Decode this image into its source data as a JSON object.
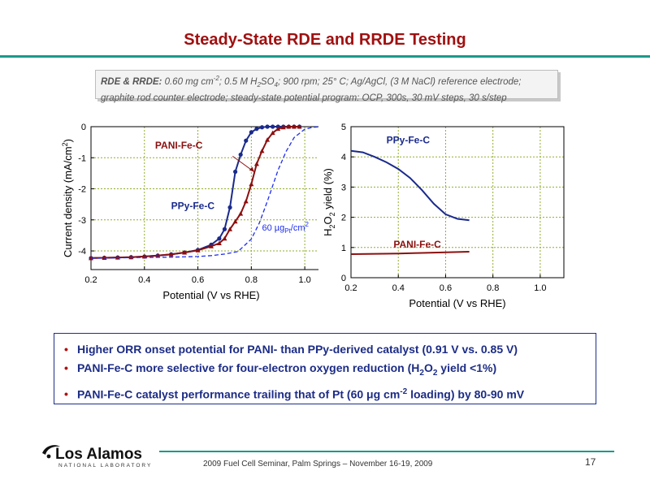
{
  "title": "Steady-State RDE and RRDE Testing",
  "info": {
    "label": "RDE & RRDE:",
    "line1_a": " 0.60 mg cm",
    "line1_b": "; 0.5 M H",
    "line1_c": "SO",
    "line1_d": "; 900 rpm; 25° C; Ag/AgCl, (3 M NaCl) reference electrode;",
    "sup_neg2": "-2",
    "sub_2": "2",
    "sub_4": "4",
    "line2": "graphite rod counter electrode; steady-state potential program: OCP, 300s, 30 mV steps, 30 s/step"
  },
  "chart_data": [
    {
      "type": "line",
      "xlabel": "Potential (V vs RHE)",
      "ylabel": "Current density (mA/cm²)",
      "xlim": [
        0.2,
        1.1
      ],
      "ylim": [
        -4.6,
        0
      ],
      "xticks": [
        "0.2",
        "0.4",
        "0.6",
        "0.8",
        "1.0"
      ],
      "yticks": [
        "0",
        "-1",
        "-2",
        "-3",
        "-4"
      ],
      "grid": true,
      "series": [
        {
          "name": "PPy-Fe-C",
          "color": "#1a2a8c",
          "marker": "circle",
          "x": [
            0.2,
            0.25,
            0.3,
            0.35,
            0.4,
            0.45,
            0.5,
            0.55,
            0.6,
            0.65,
            0.68,
            0.7,
            0.72,
            0.74,
            0.76,
            0.78,
            0.8,
            0.82,
            0.84,
            0.86,
            0.88,
            0.9,
            0.92,
            0.94,
            0.96,
            0.98
          ],
          "y": [
            -4.23,
            -4.22,
            -4.21,
            -4.2,
            -4.18,
            -4.15,
            -4.11,
            -4.05,
            -3.97,
            -3.8,
            -3.6,
            -3.3,
            -2.6,
            -1.45,
            -0.9,
            -0.45,
            -0.18,
            -0.07,
            -0.02,
            0,
            0,
            0,
            0,
            0,
            0,
            0
          ]
        },
        {
          "name": "PANI-Fe-C",
          "color": "#8c0f0f",
          "marker": "triangle",
          "x": [
            0.2,
            0.25,
            0.3,
            0.35,
            0.4,
            0.45,
            0.5,
            0.55,
            0.6,
            0.65,
            0.68,
            0.7,
            0.72,
            0.74,
            0.76,
            0.78,
            0.8,
            0.82,
            0.84,
            0.86,
            0.88,
            0.9,
            0.92,
            0.94,
            0.96,
            0.98
          ],
          "y": [
            -4.23,
            -4.22,
            -4.21,
            -4.2,
            -4.18,
            -4.15,
            -4.11,
            -4.05,
            -3.98,
            -3.85,
            -3.75,
            -3.6,
            -3.3,
            -3.05,
            -2.8,
            -2.4,
            -1.85,
            -1.2,
            -0.78,
            -0.42,
            -0.2,
            -0.07,
            -0.02,
            0,
            0,
            0
          ]
        },
        {
          "name": "60 µg_Pt/cm²",
          "color": "#1e2cf0",
          "dashed": true,
          "x": [
            0.2,
            0.3,
            0.4,
            0.5,
            0.6,
            0.65,
            0.7,
            0.75,
            0.8,
            0.83,
            0.86,
            0.9,
            0.93,
            0.96,
            1.0,
            1.03,
            1.06
          ],
          "y": [
            -4.23,
            -4.22,
            -4.21,
            -4.2,
            -4.18,
            -4.15,
            -4.1,
            -4.02,
            -3.62,
            -3.1,
            -2.4,
            -1.4,
            -0.8,
            -0.35,
            -0.08,
            -0.02,
            0
          ]
        }
      ],
      "annotations": [
        "PANI-Fe-C",
        "PPy-Fe-C",
        "60 µg",
        "Pt",
        "/cm",
        "2"
      ]
    },
    {
      "type": "line",
      "xlabel": "Potential (V vs RHE)",
      "ylabel": "H₂O₂ yield (%)",
      "xlim": [
        0.2,
        1.1
      ],
      "ylim": [
        0,
        5
      ],
      "xticks": [
        "0.2",
        "0.4",
        "0.6",
        "0.8",
        "1.0"
      ],
      "yticks": [
        "0",
        "1",
        "2",
        "3",
        "4",
        "5"
      ],
      "grid": true,
      "series": [
        {
          "name": "PPy-Fe-C",
          "color": "#1a2a8c",
          "x": [
            0.2,
            0.25,
            0.3,
            0.35,
            0.4,
            0.45,
            0.5,
            0.55,
            0.6,
            0.65,
            0.7
          ],
          "y": [
            4.2,
            4.15,
            4.0,
            3.82,
            3.6,
            3.3,
            2.9,
            2.45,
            2.1,
            1.95,
            1.9
          ]
        },
        {
          "name": "PANI-Fe-C",
          "color": "#8c0f0f",
          "x": [
            0.2,
            0.3,
            0.4,
            0.5,
            0.6,
            0.7
          ],
          "y": [
            0.78,
            0.79,
            0.8,
            0.82,
            0.84,
            0.86
          ]
        }
      ],
      "annotations": [
        "PPy-Fe-C",
        "PANI-Fe-C"
      ]
    }
  ],
  "bullets": [
    {
      "a": "Higher ORR onset potential for PANI- than PPy-derived catalyst (0.91 V vs. 0.85 V)"
    },
    {
      "a": "PANI-Fe-C more selective for four-electron oxygen reduction (H",
      "sub": "2",
      "b": "O",
      "sub2": "2",
      "c": " yield <1%)"
    },
    {
      "a": "PANI-Fe-C catalyst performance trailing that of Pt (60 μg cm",
      "sup": "-2",
      "b": " loading) by 80-90 mV"
    }
  ],
  "bullet_glyph": "•",
  "logo": {
    "name": "Los Alamos",
    "sub": "NATIONAL LABORATORY"
  },
  "footer": "2009 Fuel Cell Seminar, Palm Springs – November 16-19, 2009",
  "page_number": "17",
  "colors": {
    "title": "#a01010",
    "rule": "#1a9a8a",
    "bullet_text": "#1c2c86",
    "grid": "#8fae2a"
  }
}
